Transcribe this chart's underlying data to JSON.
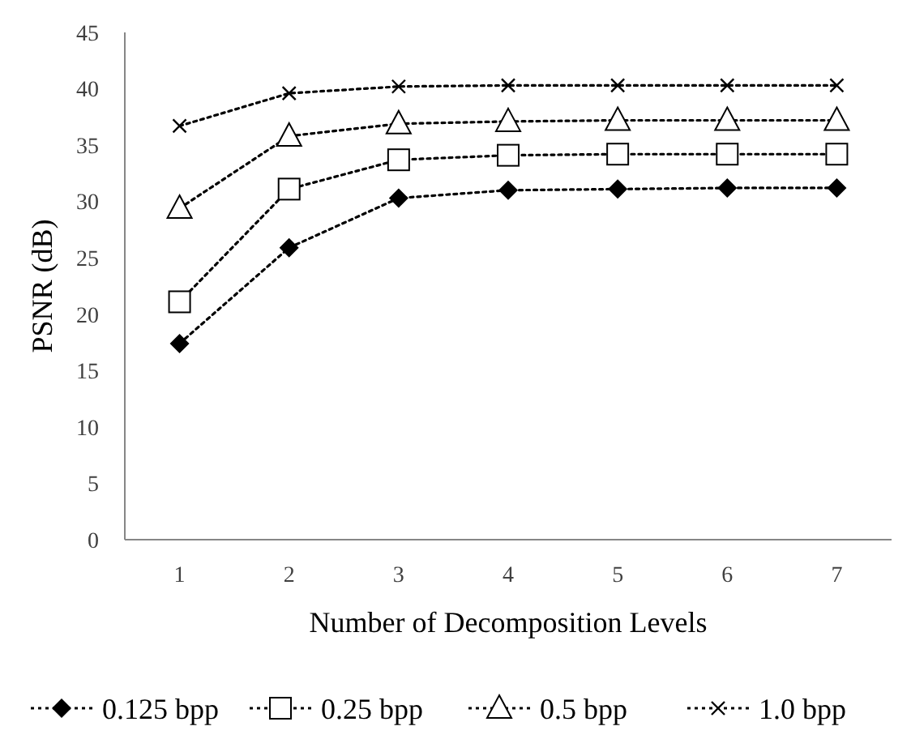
{
  "chart_data": {
    "type": "line",
    "ylabel": "PSNR (dB)",
    "xlabel": "Number of Decomposition Levels",
    "categories": [
      "1",
      "2",
      "3",
      "4",
      "5",
      "6",
      "7"
    ],
    "ylim": [
      0,
      45
    ],
    "yticks": [
      0,
      5,
      10,
      15,
      20,
      25,
      30,
      35,
      40,
      45
    ],
    "grid": false,
    "legend": "bottom",
    "line_style": "dotted",
    "series": [
      {
        "name": "0.125 bpp",
        "color": "#000000",
        "marker": "diamond",
        "values": [
          17.4,
          25.9,
          30.3,
          31.0,
          31.1,
          31.2,
          31.2
        ]
      },
      {
        "name": "0.25 bpp",
        "color": "#000000",
        "marker": "square",
        "values": [
          21.1,
          31.1,
          33.7,
          34.1,
          34.2,
          34.2,
          34.2
        ]
      },
      {
        "name": "0.5 bpp",
        "color": "#000000",
        "marker": "triangle",
        "values": [
          29.4,
          35.8,
          36.9,
          37.1,
          37.2,
          37.2,
          37.2
        ]
      },
      {
        "name": "1.0 bpp",
        "color": "#000000",
        "marker": "cross",
        "values": [
          36.7,
          39.6,
          40.2,
          40.3,
          40.3,
          40.3,
          40.3
        ]
      }
    ]
  }
}
